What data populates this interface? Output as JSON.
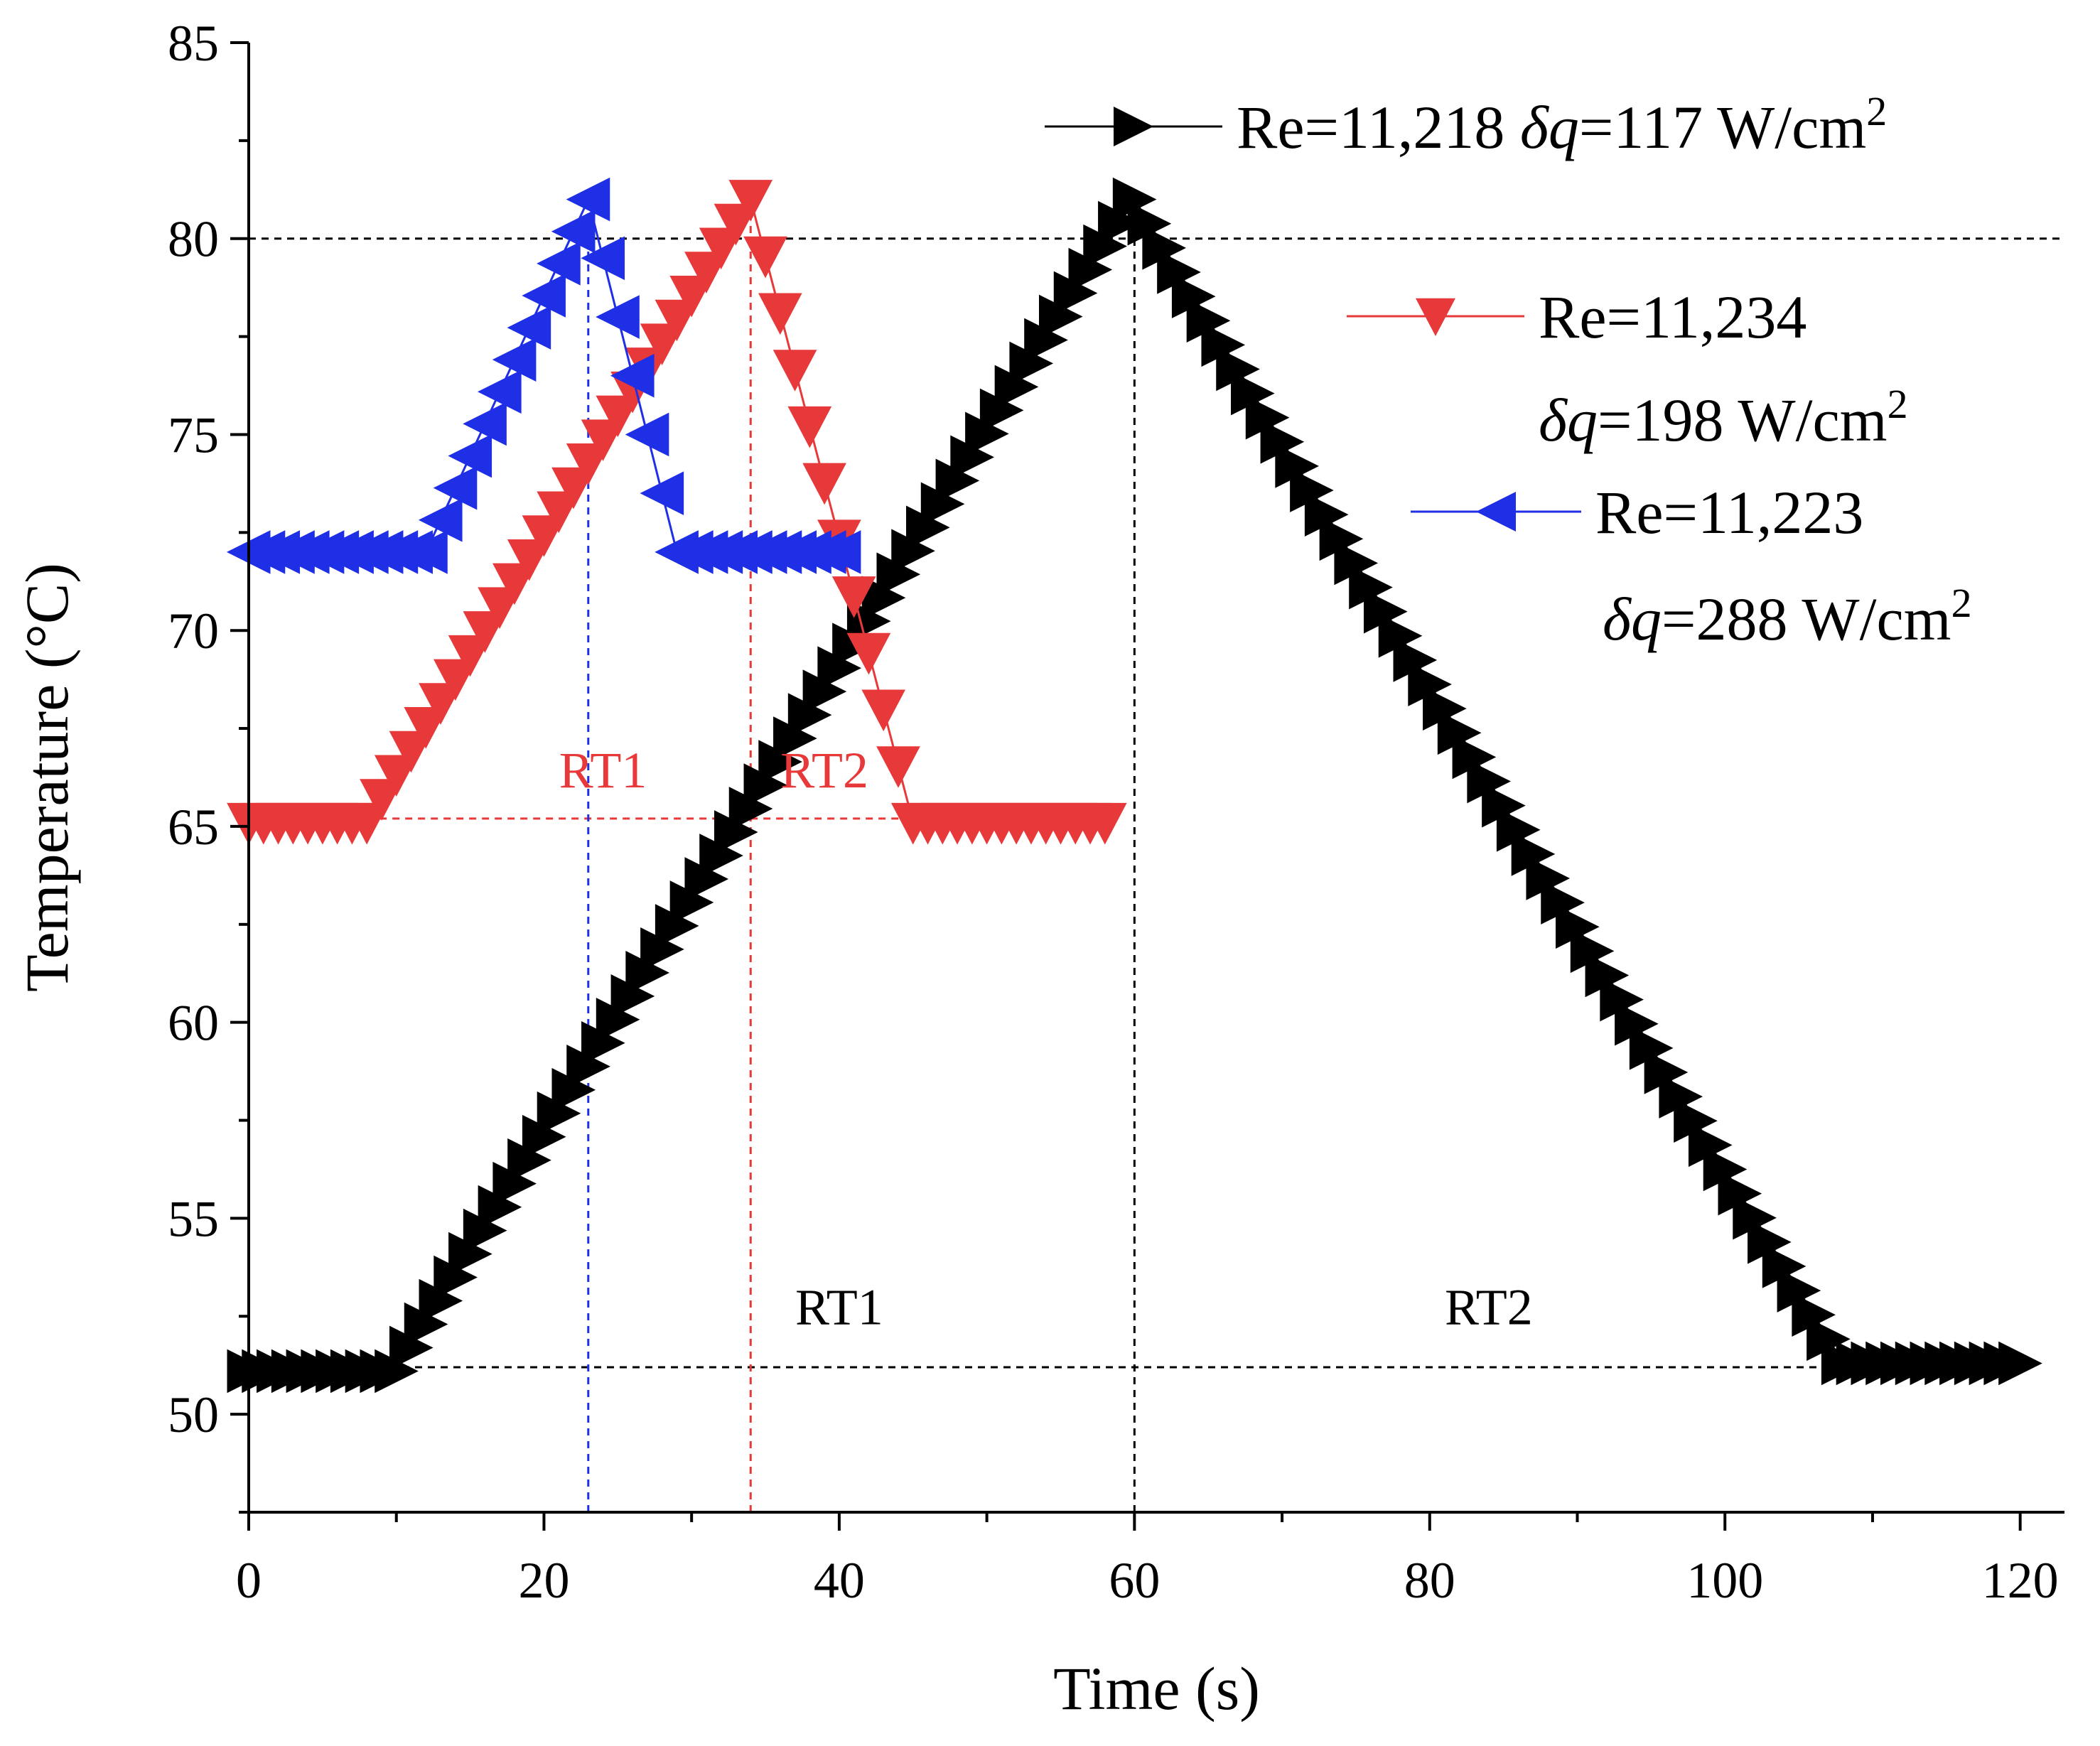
{
  "chart_data": {
    "type": "line",
    "title": "",
    "xlabel": "Time (s)",
    "ylabel": "Temperature (°C)",
    "xlim": [
      0,
      123
    ],
    "ylim": [
      47.5,
      85
    ],
    "xticks": [
      0,
      20,
      40,
      60,
      80,
      100,
      120
    ],
    "yticks": [
      50,
      55,
      60,
      65,
      70,
      75,
      80,
      85
    ],
    "xtick_labels": [
      "0",
      "20",
      "40",
      "60",
      "80",
      "100",
      "120"
    ],
    "ytick_labels": [
      "50",
      "55",
      "60",
      "65",
      "70",
      "75",
      "80",
      "85"
    ],
    "series": [
      {
        "name": "Re=11,218 δq=117 W/cm2",
        "legend": {
          "re": "Re=11,218",
          "dq": "δq",
          "rest": "=117 W/cm",
          "sup": "2"
        },
        "color": "#000000",
        "marker": "right-triangle",
        "x_start": 0,
        "x_step": 1,
        "count": 121,
        "points": [
          [
            0,
            51.1
          ],
          [
            10,
            51.1
          ],
          [
            60,
            81.0
          ],
          [
            108,
            51.3
          ],
          [
            120,
            51.3
          ]
        ]
      },
      {
        "name": "Re=11,234 δq=198 W/cm2",
        "legend": {
          "re": "Re=11,234",
          "dq": "δq",
          "rest": "=198 W/cm",
          "sup": "2"
        },
        "color": "#e8393a",
        "marker": "down-triangle",
        "x_start": 0,
        "x_step": 1,
        "count": 59,
        "points": [
          [
            0,
            65.1
          ],
          [
            8,
            65.1
          ],
          [
            34,
            81.0
          ],
          [
            45,
            65.1
          ],
          [
            58,
            65.1
          ]
        ]
      },
      {
        "name": "Re=11,223 δq=288 W/cm2",
        "legend": {
          "re": "Re=11,223",
          "dq": "δq",
          "rest": "=288 W/cm",
          "sup": "2"
        },
        "color": "#1f2fe6",
        "marker": "left-triangle",
        "x_start": 0,
        "x_step": 1,
        "count": 41,
        "points": [
          [
            0,
            72.0
          ],
          [
            12,
            72.0
          ],
          [
            23,
            81.0
          ],
          [
            29,
            72.0
          ],
          [
            40,
            72.0
          ]
        ]
      }
    ],
    "reference_lines": [
      {
        "kind": "h",
        "y": 80,
        "x_from": 0,
        "x_to": 123,
        "color": "#000000"
      },
      {
        "kind": "h",
        "y": 51.2,
        "x_from": 0,
        "x_to": 120,
        "color": "#000000"
      },
      {
        "kind": "v",
        "x": 60,
        "y_from": 47.5,
        "y_to": 81,
        "color": "#000000"
      },
      {
        "kind": "h",
        "y": 65.2,
        "x_from": 8,
        "x_to": 45,
        "color": "#e8393a"
      },
      {
        "kind": "v",
        "x": 34,
        "y_from": 47.5,
        "y_to": 81,
        "color": "#e8393a"
      },
      {
        "kind": "v",
        "x": 23,
        "y_from": 47.5,
        "y_to": 81,
        "color": "#1f2fe6"
      }
    ],
    "annotations": [
      {
        "text": "RT1",
        "x": 24,
        "y": 66.0,
        "color": "#e8393a"
      },
      {
        "text": "RT2",
        "x": 39,
        "y": 66.0,
        "color": "#e8393a"
      },
      {
        "text": "RT1",
        "x": 40,
        "y": 52.3,
        "color": "#000000"
      },
      {
        "text": "RT2",
        "x": 84,
        "y": 52.3,
        "color": "#000000"
      }
    ],
    "grid": false,
    "legend_position": "top-right"
  }
}
